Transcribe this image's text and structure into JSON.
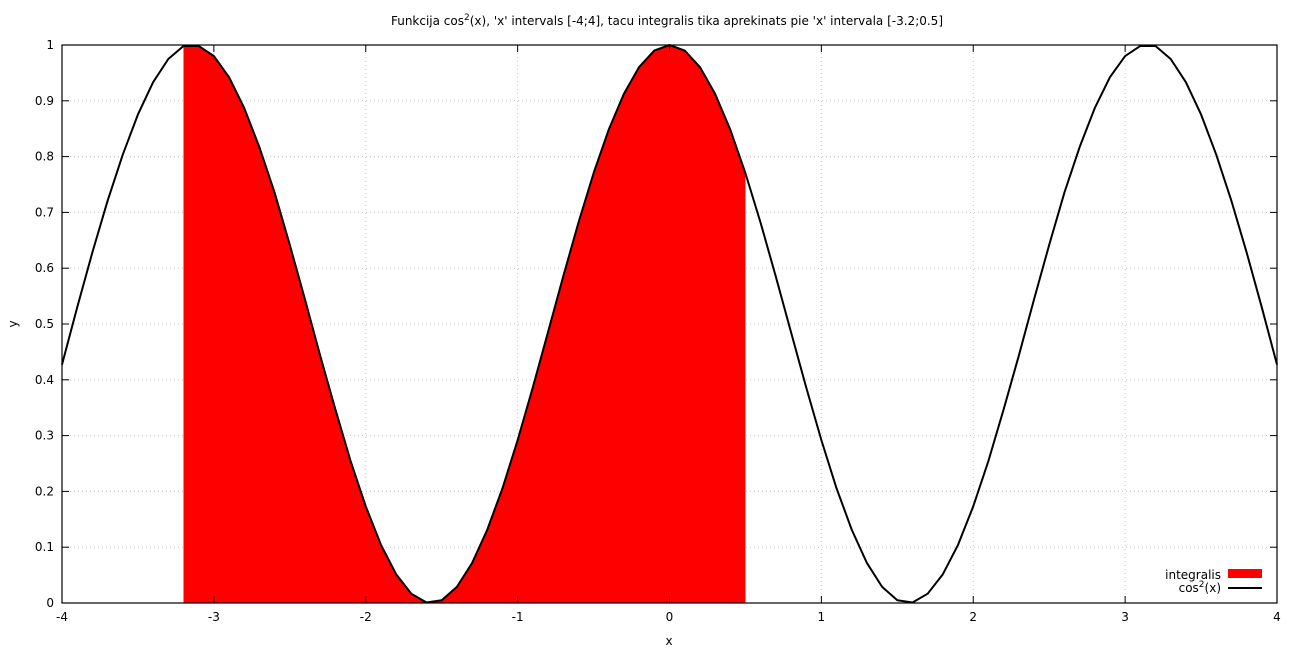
{
  "chart_data": {
    "type": "area",
    "title": {
      "prefix": "Funkcija cos",
      "sup": "2",
      "suffix": "(x), 'x' intervals [-4;4], tacu integralis tika aprekinats pie 'x' intervala [-3.2;0.5]"
    },
    "xlabel": "x",
    "ylabel": "y",
    "xlim": [
      -4,
      4
    ],
    "ylim": [
      0,
      1
    ],
    "x_ticks": [
      -4,
      -3,
      -2,
      -1,
      0,
      1,
      2,
      3,
      4
    ],
    "x_tick_labels": [
      "-4",
      "-3",
      "-2",
      "-1",
      "0",
      "1",
      "2",
      "3",
      "4"
    ],
    "y_ticks": [
      0,
      0.1,
      0.2,
      0.3,
      0.4,
      0.5,
      0.6,
      0.7,
      0.8,
      0.9,
      1
    ],
    "y_tick_labels": [
      "0",
      "0.1",
      "0.2",
      "0.3",
      "0.4",
      "0.5",
      "0.6",
      "0.7",
      "0.8",
      "0.9",
      "1"
    ],
    "grid": true,
    "legend_position": "bottom-right",
    "series": [
      {
        "name": "integralis",
        "kind": "filled-area",
        "color": "#ff0000",
        "x_range": [
          -3.2,
          0.5
        ],
        "x": [
          -3.2,
          -3.1,
          -3.0,
          -2.9,
          -2.8,
          -2.7,
          -2.6,
          -2.5,
          -2.4,
          -2.3,
          -2.2,
          -2.1,
          -2.0,
          -1.9,
          -1.8,
          -1.7,
          -1.6,
          -1.5,
          -1.4,
          -1.3,
          -1.2,
          -1.1,
          -1.0,
          -0.9,
          -0.8,
          -0.7,
          -0.6,
          -0.5,
          -0.4,
          -0.3,
          -0.2,
          -0.1,
          0.0,
          0.1,
          0.2,
          0.3,
          0.4,
          0.5
        ],
        "values": [
          0.9983,
          0.9983,
          0.9801,
          0.9423,
          0.8869,
          0.8167,
          0.7353,
          0.6418,
          0.5439,
          0.4432,
          0.3469,
          0.2547,
          0.1732,
          0.1043,
          0.0516,
          0.0167,
          0.0009,
          0.005,
          0.0289,
          0.0716,
          0.1313,
          0.2054,
          0.2919,
          0.3864,
          0.4854,
          0.585,
          0.6812,
          0.7702,
          0.8484,
          0.9127,
          0.9605,
          0.99,
          1.0,
          0.99,
          0.9605,
          0.9127,
          0.8484,
          0.7702
        ]
      },
      {
        "name": "cos²(x)",
        "legend_prefix": "cos",
        "legend_sup": "2",
        "legend_suffix": "(x)",
        "kind": "line",
        "color": "#000000",
        "x": [
          -4.0,
          -3.9,
          -3.8,
          -3.7,
          -3.6,
          -3.5,
          -3.4,
          -3.3,
          -3.2,
          -3.1,
          -3.0,
          -2.9,
          -2.8,
          -2.7,
          -2.6,
          -2.5,
          -2.4,
          -2.3,
          -2.2,
          -2.1,
          -2.0,
          -1.9,
          -1.8,
          -1.7,
          -1.6,
          -1.5,
          -1.4,
          -1.3,
          -1.2,
          -1.1,
          -1.0,
          -0.9,
          -0.8,
          -0.7,
          -0.6,
          -0.5,
          -0.4,
          -0.3,
          -0.2,
          -0.1,
          0.0,
          0.1,
          0.2,
          0.3,
          0.4,
          0.5,
          0.6,
          0.7,
          0.8,
          0.9,
          1.0,
          1.1,
          1.2,
          1.3,
          1.4,
          1.5,
          1.6,
          1.7,
          1.8,
          1.9,
          2.0,
          2.1,
          2.2,
          2.3,
          2.4,
          2.5,
          2.6,
          2.7,
          2.8,
          2.9,
          3.0,
          3.1,
          3.2,
          3.3,
          3.4,
          3.5,
          3.6,
          3.7,
          3.8,
          3.9,
          4.0
        ],
        "values": [
          0.4272,
          0.5297,
          0.6283,
          0.7205,
          0.8034,
          0.8755,
          0.9334,
          0.9749,
          0.9983,
          0.9983,
          0.9801,
          0.9423,
          0.8869,
          0.8167,
          0.7353,
          0.6418,
          0.5439,
          0.4432,
          0.3469,
          0.2547,
          0.1732,
          0.1043,
          0.0516,
          0.0167,
          0.0009,
          0.005,
          0.0289,
          0.0716,
          0.1313,
          0.2054,
          0.2919,
          0.3864,
          0.4854,
          0.585,
          0.6812,
          0.7702,
          0.8484,
          0.9127,
          0.9605,
          0.99,
          1.0,
          0.99,
          0.9605,
          0.9127,
          0.8484,
          0.7702,
          0.6812,
          0.585,
          0.4854,
          0.3864,
          0.2919,
          0.2054,
          0.1313,
          0.0716,
          0.0289,
          0.005,
          0.0009,
          0.0167,
          0.0516,
          0.1043,
          0.1732,
          0.2547,
          0.3469,
          0.4432,
          0.5439,
          0.6418,
          0.7353,
          0.8167,
          0.8869,
          0.9423,
          0.9801,
          0.9983,
          0.9983,
          0.9749,
          0.9334,
          0.8755,
          0.8034,
          0.7205,
          0.6283,
          0.5297,
          0.4272
        ]
      }
    ]
  }
}
